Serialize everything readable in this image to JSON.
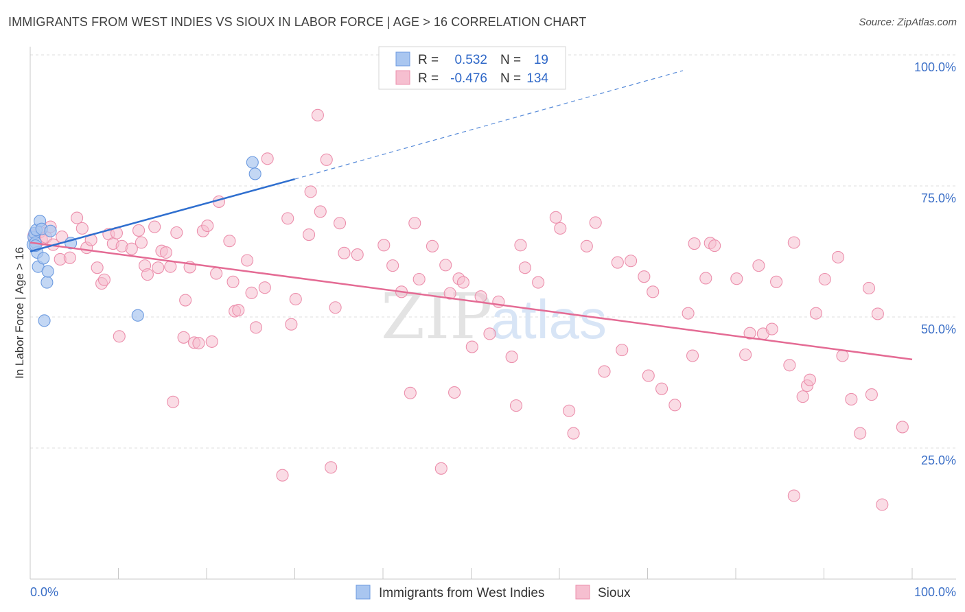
{
  "title": "IMMIGRANTS FROM WEST INDIES VS SIOUX IN LABOR FORCE | AGE > 16 CORRELATION CHART",
  "source": "Source: ZipAtlas.com",
  "watermark": {
    "part1": "ZIP",
    "part2": "atlas"
  },
  "colors": {
    "blue_fill": "#a9c6f0",
    "blue_stroke": "#6d9be0",
    "blue_line": "#2f6fcf",
    "pink_fill": "#f6bfd0",
    "pink_stroke": "#ec8fac",
    "pink_line": "#e46b94",
    "grid": "#dcdcdc",
    "axis_text": "#3b6fc7"
  },
  "legend": {
    "rows": [
      {
        "r_label": "R =",
        "r_value": "0.532",
        "n_label": "N =",
        "n_value": "19"
      },
      {
        "r_label": "R =",
        "r_value": "-0.476",
        "n_label": "N =",
        "n_value": "134"
      }
    ]
  },
  "chart_data": {
    "type": "scatter",
    "xlabel": "",
    "ylabel": "In Labor Force | Age > 16",
    "xlim": [
      0,
      100
    ],
    "ylim": [
      0,
      100
    ],
    "x_tick_labels": [
      "0.0%",
      "100.0%"
    ],
    "y_tick_labels": [
      "25.0%",
      "50.0%",
      "75.0%",
      "100.0%"
    ],
    "y_tick_values": [
      25,
      50,
      75,
      100
    ],
    "series": [
      {
        "name": "Immigrants from West Indies",
        "trend": {
          "x_start": 0,
          "y_start": 62.5,
          "x_solid_end": 30,
          "y_solid_end": 76.3,
          "x_dash_end": 74,
          "y_dash_end": 97
        },
        "points": [
          [
            0.3,
            63.8
          ],
          [
            0.4,
            65.2
          ],
          [
            0.5,
            66.0
          ],
          [
            0.6,
            64.2
          ],
          [
            0.7,
            66.6
          ],
          [
            0.8,
            62.3
          ],
          [
            0.9,
            59.6
          ],
          [
            1.1,
            68.3
          ],
          [
            1.3,
            66.8
          ],
          [
            1.5,
            61.2
          ],
          [
            1.6,
            49.3
          ],
          [
            1.9,
            56.6
          ],
          [
            2.0,
            58.7
          ],
          [
            2.3,
            66.4
          ],
          [
            4.6,
            64.1
          ],
          [
            12.2,
            50.3
          ],
          [
            25.2,
            79.5
          ],
          [
            25.5,
            77.3
          ],
          [
            0.6,
            63.6
          ]
        ]
      },
      {
        "name": "Sioux",
        "trend": {
          "x_start": 0,
          "y_start": 64.2,
          "x_end": 100,
          "y_end": 41.9
        },
        "points": [
          [
            0.4,
            65.5
          ],
          [
            0.7,
            64.0
          ],
          [
            1.1,
            66.2
          ],
          [
            1.3,
            64.8
          ],
          [
            1.8,
            65.2
          ],
          [
            2.3,
            67.2
          ],
          [
            2.6,
            63.8
          ],
          [
            3.4,
            61.0
          ],
          [
            3.6,
            65.3
          ],
          [
            4.5,
            61.3
          ],
          [
            5.3,
            68.9
          ],
          [
            5.9,
            66.9
          ],
          [
            6.4,
            63.2
          ],
          [
            6.9,
            64.7
          ],
          [
            7.6,
            59.4
          ],
          [
            8.1,
            56.4
          ],
          [
            8.4,
            57.1
          ],
          [
            8.9,
            65.8
          ],
          [
            9.4,
            64.0
          ],
          [
            9.8,
            66.0
          ],
          [
            10.1,
            46.3
          ],
          [
            10.4,
            63.5
          ],
          [
            11.5,
            63.0
          ],
          [
            12.3,
            66.5
          ],
          [
            12.6,
            64.2
          ],
          [
            13.0,
            59.8
          ],
          [
            13.3,
            58.1
          ],
          [
            14.1,
            67.2
          ],
          [
            14.5,
            59.4
          ],
          [
            14.9,
            62.6
          ],
          [
            15.4,
            62.3
          ],
          [
            15.9,
            59.6
          ],
          [
            16.2,
            33.8
          ],
          [
            16.6,
            66.1
          ],
          [
            17.4,
            46.1
          ],
          [
            17.6,
            53.2
          ],
          [
            18.1,
            59.5
          ],
          [
            18.6,
            45.1
          ],
          [
            19.1,
            45.0
          ],
          [
            19.6,
            66.4
          ],
          [
            20.1,
            67.4
          ],
          [
            20.6,
            45.3
          ],
          [
            21.1,
            58.3
          ],
          [
            21.4,
            72.0
          ],
          [
            22.6,
            64.5
          ],
          [
            23.0,
            56.7
          ],
          [
            23.2,
            51.1
          ],
          [
            23.6,
            51.3
          ],
          [
            24.6,
            60.8
          ],
          [
            25.1,
            54.6
          ],
          [
            25.6,
            48.0
          ],
          [
            26.6,
            55.6
          ],
          [
            26.9,
            80.2
          ],
          [
            28.6,
            19.8
          ],
          [
            29.2,
            68.8
          ],
          [
            29.6,
            48.6
          ],
          [
            30.1,
            53.4
          ],
          [
            31.6,
            65.7
          ],
          [
            31.8,
            73.9
          ],
          [
            32.6,
            88.5
          ],
          [
            32.9,
            70.1
          ],
          [
            33.6,
            80.0
          ],
          [
            34.1,
            21.3
          ],
          [
            34.6,
            51.8
          ],
          [
            35.1,
            67.9
          ],
          [
            35.6,
            62.2
          ],
          [
            37.1,
            61.9
          ],
          [
            40.1,
            63.7
          ],
          [
            41.1,
            59.8
          ],
          [
            42.1,
            54.8
          ],
          [
            43.1,
            35.5
          ],
          [
            43.6,
            67.9
          ],
          [
            44.1,
            57.2
          ],
          [
            45.6,
            63.5
          ],
          [
            46.6,
            21.1
          ],
          [
            47.1,
            59.9
          ],
          [
            47.6,
            54.5
          ],
          [
            48.1,
            35.6
          ],
          [
            48.6,
            57.3
          ],
          [
            49.1,
            56.6
          ],
          [
            50.1,
            44.3
          ],
          [
            51.1,
            53.9
          ],
          [
            52.1,
            46.8
          ],
          [
            53.1,
            52.9
          ],
          [
            54.6,
            42.4
          ],
          [
            55.1,
            33.1
          ],
          [
            55.6,
            63.7
          ],
          [
            56.1,
            59.4
          ],
          [
            57.6,
            56.6
          ],
          [
            59.6,
            69.0
          ],
          [
            60.1,
            66.9
          ],
          [
            61.1,
            32.1
          ],
          [
            61.6,
            27.8
          ],
          [
            63.1,
            63.5
          ],
          [
            64.1,
            68.0
          ],
          [
            65.1,
            39.6
          ],
          [
            66.6,
            60.4
          ],
          [
            67.1,
            43.7
          ],
          [
            68.1,
            60.7
          ],
          [
            69.6,
            57.7
          ],
          [
            70.1,
            38.8
          ],
          [
            70.6,
            54.8
          ],
          [
            71.6,
            36.3
          ],
          [
            73.1,
            33.2
          ],
          [
            74.6,
            50.7
          ],
          [
            75.1,
            42.6
          ],
          [
            76.6,
            57.4
          ],
          [
            77.1,
            64.1
          ],
          [
            77.6,
            63.6
          ],
          [
            80.1,
            57.3
          ],
          [
            81.1,
            42.8
          ],
          [
            81.6,
            46.9
          ],
          [
            82.6,
            59.8
          ],
          [
            83.1,
            46.8
          ],
          [
            84.1,
            47.7
          ],
          [
            84.6,
            56.7
          ],
          [
            86.1,
            40.8
          ],
          [
            86.6,
            15.9
          ],
          [
            87.6,
            34.8
          ],
          [
            88.1,
            36.9
          ],
          [
            88.4,
            38.0
          ],
          [
            89.1,
            50.7
          ],
          [
            90.1,
            57.2
          ],
          [
            91.6,
            61.4
          ],
          [
            92.1,
            42.6
          ],
          [
            93.1,
            34.3
          ],
          [
            94.1,
            27.8
          ],
          [
            95.1,
            55.5
          ],
          [
            95.4,
            35.2
          ],
          [
            96.1,
            50.6
          ],
          [
            96.6,
            14.2
          ],
          [
            98.9,
            29.0
          ],
          [
            86.6,
            64.2
          ],
          [
            75.3,
            64.0
          ]
        ]
      }
    ]
  },
  "bottom_legend": [
    {
      "label": "Immigrants from West Indies"
    },
    {
      "label": "Sioux"
    }
  ]
}
